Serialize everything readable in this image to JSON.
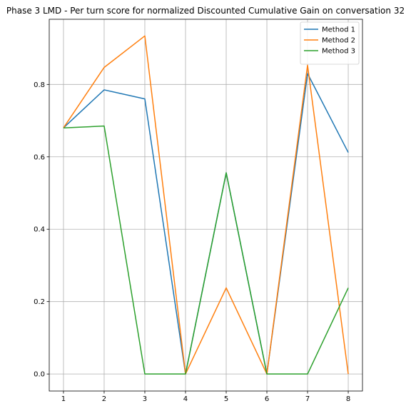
{
  "chart_data": {
    "type": "line",
    "title": "Phase 3 LMD - Per turn score for normalized Discounted Cumulative Gain on conversation 32",
    "xlabel": "",
    "ylabel": "",
    "x": [
      1,
      2,
      3,
      4,
      5,
      6,
      7,
      8
    ],
    "xlim": [
      0.65,
      8.35
    ],
    "ylim": [
      -0.047,
      0.98
    ],
    "xticks": [
      "1",
      "2",
      "3",
      "4",
      "5",
      "6",
      "7",
      "8"
    ],
    "yticks": [
      "0.0",
      "0.2",
      "0.4",
      "0.6",
      "0.8"
    ],
    "grid": true,
    "legend_position": "top-right",
    "series": [
      {
        "name": "Method 1",
        "color": "#1f77b4",
        "values": [
          0.68,
          0.785,
          0.76,
          0.0,
          0.556,
          0.0,
          0.83,
          0.612
        ]
      },
      {
        "name": "Method 2",
        "color": "#ff7f0e",
        "values": [
          0.68,
          0.847,
          0.934,
          0.0,
          0.238,
          0.0,
          0.853,
          0.0
        ]
      },
      {
        "name": "Method 3",
        "color": "#2ca02c",
        "values": [
          0.68,
          0.685,
          0.0,
          0.0,
          0.556,
          0.0,
          0.0,
          0.238
        ]
      }
    ]
  }
}
